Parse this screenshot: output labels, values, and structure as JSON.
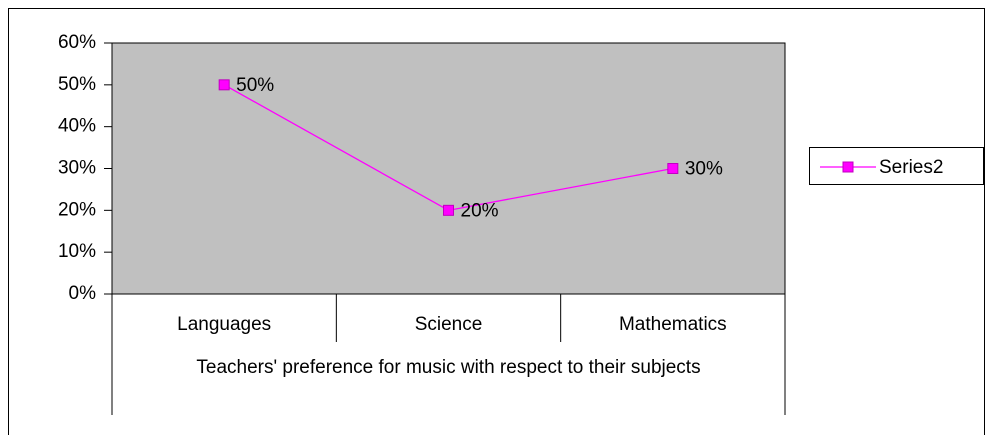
{
  "chart_data": {
    "type": "line",
    "x_label": "Teachers' preference for music with respect to their subjects",
    "categories": [
      "Languages",
      "Science",
      "Mathematics"
    ],
    "series": [
      {
        "name": "Series2",
        "color": "#ff00ff",
        "values": [
          50,
          20,
          30
        ],
        "value_labels": [
          "50%",
          "20%",
          "30%"
        ]
      }
    ],
    "ylim": [
      0,
      60
    ],
    "yticks": [
      {
        "value": 0,
        "label": "0%"
      },
      {
        "value": 10,
        "label": "10%"
      },
      {
        "value": 20,
        "label": "20%"
      },
      {
        "value": 30,
        "label": "30%"
      },
      {
        "value": 40,
        "label": "40%"
      },
      {
        "value": 50,
        "label": "50%"
      },
      {
        "value": 60,
        "label": "60%"
      }
    ],
    "plot_background": "#c0c0c0",
    "legend": "right"
  }
}
